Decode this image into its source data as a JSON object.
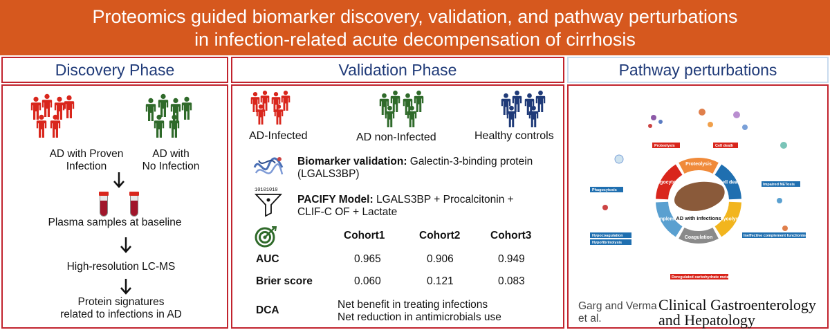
{
  "title": {
    "line1": "Proteomics guided biomarker discovery, validation, and pathway perturbations",
    "line2": "in infection-related acute decompensation of cirrhosis"
  },
  "colors": {
    "banner": "#d6581e",
    "border": "#c1232d",
    "heading": "#1f3a78",
    "red": "#d9261c",
    "green": "#2f6a2a",
    "blue": "#1f3a78"
  },
  "discovery": {
    "heading": "Discovery Phase",
    "group1": {
      "line1": "AD with Proven",
      "line2": "Infection",
      "icon": "people-red-icon"
    },
    "group2": {
      "line1": "AD with",
      "line2": "No Infection",
      "icon": "people-green-icon"
    },
    "step1": "Plasma samples at baseline",
    "step2": "High-resolution LC-MS",
    "step3": {
      "line1": "Protein signatures",
      "line2": "related to infections in AD"
    }
  },
  "validation": {
    "heading": "Validation Phase",
    "groups": [
      "AD-Infected",
      "AD non-Infected",
      "Healthy controls"
    ],
    "biomarker": {
      "label": "Biomarker validation:",
      "text1": " Galectin-3-binding protein",
      "text2": "(LGALS3BP)"
    },
    "model": {
      "label": "PACIFY Model:",
      "text1": " LGALS3BP + Procalcitonin +",
      "text2": "CLIF-C OF + Lactate"
    },
    "table": {
      "columns": [
        "Cohort1",
        "Cohort2",
        "Cohort3"
      ],
      "rows": [
        {
          "label": "AUC",
          "values": [
            "0.965",
            "0.906",
            "0.949"
          ]
        },
        {
          "label": "Brier score",
          "values": [
            "0.060",
            "0.121",
            "0.083"
          ]
        }
      ]
    },
    "dca": {
      "label": "DCA",
      "line1": "Net benefit in treating infections",
      "line2": "Net reduction in antimicrobials use"
    }
  },
  "pathway": {
    "heading": "Pathway perturbations",
    "center": "AD with infections",
    "segments": [
      "Proteolysis",
      "Cell death",
      "Glycolysis",
      "Coagulation",
      "Complement",
      "Phagocytosis"
    ],
    "boxes": [
      "Proteolysis",
      "Cell death",
      "Phagocytosis",
      "Impaired NETosis",
      "Hypocoagulation",
      "Hypofibrinolysis",
      "Ineffective complement functioning",
      "Deregulated carbohydrate metabolism"
    ],
    "authors": {
      "line1": "Garg and Verma",
      "line2": "et al."
    },
    "journal": {
      "line1": "Clinical Gastroenterology",
      "line2": "and Hepatology"
    }
  }
}
